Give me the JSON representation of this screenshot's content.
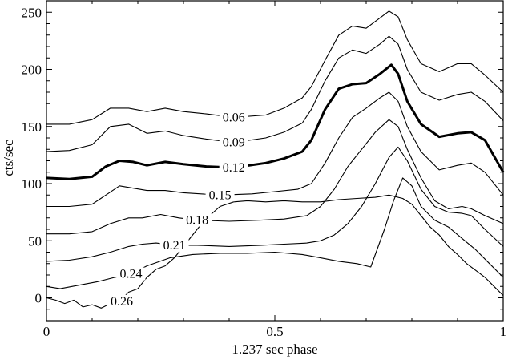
{
  "chart_data": {
    "type": "line",
    "title": "",
    "xlabel": "1.237 sec phase",
    "ylabel": "cts/sec",
    "xlim": [
      0,
      1
    ],
    "ylim": [
      -20,
      260
    ],
    "xticks": [
      0,
      0.5,
      1
    ],
    "xtick_labels": [
      "0",
      "0.5",
      "1"
    ],
    "yticks": [
      0,
      50,
      100,
      150,
      200,
      250
    ],
    "ytick_labels": [
      "0",
      "50",
      "100",
      "150",
      "200",
      "250"
    ],
    "grid": false,
    "legend": "none",
    "series": [
      {
        "label": "0.06",
        "emphasis": false,
        "label_pos": [
          0.41,
          158
        ],
        "points": [
          [
            0,
            152
          ],
          [
            0.05,
            152
          ],
          [
            0.1,
            156
          ],
          [
            0.14,
            166
          ],
          [
            0.18,
            166
          ],
          [
            0.22,
            163
          ],
          [
            0.26,
            166
          ],
          [
            0.3,
            163
          ],
          [
            0.35,
            161
          ],
          [
            0.41,
            158
          ],
          [
            0.48,
            160
          ],
          [
            0.52,
            166
          ],
          [
            0.56,
            175
          ],
          [
            0.58,
            185
          ],
          [
            0.61,
            208
          ],
          [
            0.64,
            230
          ],
          [
            0.67,
            238
          ],
          [
            0.7,
            236
          ],
          [
            0.73,
            245
          ],
          [
            0.75,
            251
          ],
          [
            0.77,
            246
          ],
          [
            0.79,
            226
          ],
          [
            0.82,
            205
          ],
          [
            0.86,
            198
          ],
          [
            0.9,
            205
          ],
          [
            0.93,
            205
          ],
          [
            0.96,
            195
          ],
          [
            1,
            180
          ]
        ]
      },
      {
        "label": "0.09",
        "emphasis": false,
        "label_pos": [
          0.41,
          136
        ],
        "points": [
          [
            0,
            128
          ],
          [
            0.05,
            129
          ],
          [
            0.1,
            134
          ],
          [
            0.14,
            150
          ],
          [
            0.18,
            152
          ],
          [
            0.22,
            144
          ],
          [
            0.26,
            146
          ],
          [
            0.3,
            142
          ],
          [
            0.35,
            139
          ],
          [
            0.41,
            136
          ],
          [
            0.48,
            140
          ],
          [
            0.52,
            145
          ],
          [
            0.56,
            153
          ],
          [
            0.58,
            165
          ],
          [
            0.61,
            190
          ],
          [
            0.64,
            210
          ],
          [
            0.67,
            217
          ],
          [
            0.7,
            214
          ],
          [
            0.73,
            222
          ],
          [
            0.75,
            229
          ],
          [
            0.77,
            222
          ],
          [
            0.79,
            200
          ],
          [
            0.82,
            180
          ],
          [
            0.86,
            173
          ],
          [
            0.9,
            178
          ],
          [
            0.93,
            180
          ],
          [
            0.96,
            172
          ],
          [
            1,
            155
          ]
        ]
      },
      {
        "label": "0.12",
        "emphasis": true,
        "label_pos": [
          0.41,
          114
        ],
        "points": [
          [
            0,
            105
          ],
          [
            0.05,
            104
          ],
          [
            0.1,
            106
          ],
          [
            0.13,
            115
          ],
          [
            0.16,
            120
          ],
          [
            0.19,
            119
          ],
          [
            0.22,
            116
          ],
          [
            0.26,
            119
          ],
          [
            0.3,
            117
          ],
          [
            0.35,
            115
          ],
          [
            0.41,
            114
          ],
          [
            0.48,
            118
          ],
          [
            0.52,
            122
          ],
          [
            0.56,
            128
          ],
          [
            0.58,
            138
          ],
          [
            0.61,
            165
          ],
          [
            0.64,
            183
          ],
          [
            0.67,
            187
          ],
          [
            0.7,
            188
          ],
          [
            0.73,
            196
          ],
          [
            0.755,
            204
          ],
          [
            0.77,
            196
          ],
          [
            0.79,
            172
          ],
          [
            0.82,
            152
          ],
          [
            0.86,
            141
          ],
          [
            0.9,
            144
          ],
          [
            0.93,
            145
          ],
          [
            0.96,
            138
          ],
          [
            1,
            110
          ]
        ]
      },
      {
        "label": "0.15",
        "emphasis": false,
        "label_pos": [
          0.38,
          90
        ],
        "points": [
          [
            0,
            80
          ],
          [
            0.05,
            80
          ],
          [
            0.1,
            82
          ],
          [
            0.13,
            90
          ],
          [
            0.16,
            98
          ],
          [
            0.19,
            96
          ],
          [
            0.22,
            94
          ],
          [
            0.26,
            94
          ],
          [
            0.3,
            92
          ],
          [
            0.38,
            90
          ],
          [
            0.45,
            91
          ],
          [
            0.5,
            93
          ],
          [
            0.55,
            95
          ],
          [
            0.58,
            100
          ],
          [
            0.61,
            118
          ],
          [
            0.64,
            140
          ],
          [
            0.67,
            158
          ],
          [
            0.7,
            166
          ],
          [
            0.73,
            175
          ],
          [
            0.75,
            180
          ],
          [
            0.77,
            172
          ],
          [
            0.79,
            150
          ],
          [
            0.82,
            128
          ],
          [
            0.86,
            112
          ],
          [
            0.9,
            116
          ],
          [
            0.93,
            118
          ],
          [
            0.96,
            110
          ],
          [
            1,
            90
          ]
        ]
      },
      {
        "label": "0.18",
        "emphasis": false,
        "label_pos": [
          0.33,
          68
        ],
        "points": [
          [
            0,
            56
          ],
          [
            0.05,
            56
          ],
          [
            0.1,
            58
          ],
          [
            0.14,
            65
          ],
          [
            0.18,
            70
          ],
          [
            0.21,
            70
          ],
          [
            0.25,
            73
          ],
          [
            0.29,
            70
          ],
          [
            0.33,
            68
          ],
          [
            0.4,
            67
          ],
          [
            0.47,
            68
          ],
          [
            0.52,
            69
          ],
          [
            0.57,
            72
          ],
          [
            0.6,
            80
          ],
          [
            0.63,
            95
          ],
          [
            0.66,
            115
          ],
          [
            0.69,
            130
          ],
          [
            0.72,
            145
          ],
          [
            0.75,
            156
          ],
          [
            0.77,
            150
          ],
          [
            0.79,
            130
          ],
          [
            0.82,
            105
          ],
          [
            0.85,
            85
          ],
          [
            0.88,
            78
          ],
          [
            0.91,
            80
          ],
          [
            0.93,
            78
          ],
          [
            0.96,
            72
          ],
          [
            1,
            65
          ]
        ]
      },
      {
        "label": "0.21",
        "emphasis": false,
        "label_pos": [
          0.28,
          46
        ],
        "points": [
          [
            0,
            32
          ],
          [
            0.05,
            33
          ],
          [
            0.1,
            36
          ],
          [
            0.14,
            40
          ],
          [
            0.18,
            45
          ],
          [
            0.21,
            47
          ],
          [
            0.24,
            48
          ],
          [
            0.28,
            46
          ],
          [
            0.33,
            46
          ],
          [
            0.4,
            45
          ],
          [
            0.47,
            46
          ],
          [
            0.52,
            47
          ],
          [
            0.57,
            48
          ],
          [
            0.6,
            50
          ],
          [
            0.63,
            55
          ],
          [
            0.66,
            65
          ],
          [
            0.69,
            80
          ],
          [
            0.72,
            100
          ],
          [
            0.75,
            123
          ],
          [
            0.77,
            132
          ],
          [
            0.79,
            120
          ],
          [
            0.82,
            95
          ],
          [
            0.85,
            80
          ],
          [
            0.88,
            75
          ],
          [
            0.91,
            74
          ],
          [
            0.93,
            72
          ],
          [
            0.96,
            60
          ],
          [
            1,
            45
          ]
        ]
      },
      {
        "label": "0.24",
        "emphasis": false,
        "label_pos": [
          0.185,
          21
        ],
        "points": [
          [
            0,
            10
          ],
          [
            0.03,
            8
          ],
          [
            0.07,
            11
          ],
          [
            0.11,
            14
          ],
          [
            0.15,
            18
          ],
          [
            0.185,
            21
          ],
          [
            0.22,
            28
          ],
          [
            0.27,
            35
          ],
          [
            0.32,
            38
          ],
          [
            0.38,
            39
          ],
          [
            0.44,
            39
          ],
          [
            0.5,
            40
          ],
          [
            0.56,
            38
          ],
          [
            0.6,
            35
          ],
          [
            0.64,
            32
          ],
          [
            0.68,
            30
          ],
          [
            0.71,
            27
          ],
          [
            0.74,
            60
          ],
          [
            0.76,
            85
          ],
          [
            0.78,
            105
          ],
          [
            0.8,
            98
          ],
          [
            0.82,
            80
          ],
          [
            0.85,
            68
          ],
          [
            0.88,
            62
          ],
          [
            0.91,
            52
          ],
          [
            0.94,
            42
          ],
          [
            0.97,
            30
          ],
          [
            1,
            18
          ]
        ]
      },
      {
        "label": "0.26",
        "emphasis": false,
        "label_pos": [
          0.165,
          -3
        ],
        "points": [
          [
            0,
            0
          ],
          [
            0.02,
            -2
          ],
          [
            0.04,
            -5
          ],
          [
            0.06,
            -2
          ],
          [
            0.08,
            -8
          ],
          [
            0.1,
            -6
          ],
          [
            0.12,
            -9
          ],
          [
            0.14,
            -5
          ],
          [
            0.16,
            -3
          ],
          [
            0.18,
            5
          ],
          [
            0.2,
            8
          ],
          [
            0.22,
            18
          ],
          [
            0.24,
            25
          ],
          [
            0.26,
            28
          ],
          [
            0.28,
            35
          ],
          [
            0.3,
            45
          ],
          [
            0.32,
            55
          ],
          [
            0.34,
            65
          ],
          [
            0.36,
            73
          ],
          [
            0.38,
            80
          ],
          [
            0.41,
            84
          ],
          [
            0.44,
            85
          ],
          [
            0.48,
            84
          ],
          [
            0.52,
            85
          ],
          [
            0.56,
            84
          ],
          [
            0.6,
            84
          ],
          [
            0.64,
            86
          ],
          [
            0.68,
            87
          ],
          [
            0.72,
            88
          ],
          [
            0.75,
            90
          ],
          [
            0.78,
            87
          ],
          [
            0.8,
            82
          ],
          [
            0.82,
            72
          ],
          [
            0.84,
            62
          ],
          [
            0.86,
            55
          ],
          [
            0.88,
            45
          ],
          [
            0.9,
            38
          ],
          [
            0.92,
            30
          ],
          [
            0.94,
            24
          ],
          [
            0.96,
            18
          ],
          [
            0.98,
            10
          ],
          [
            1,
            2
          ]
        ]
      }
    ]
  }
}
